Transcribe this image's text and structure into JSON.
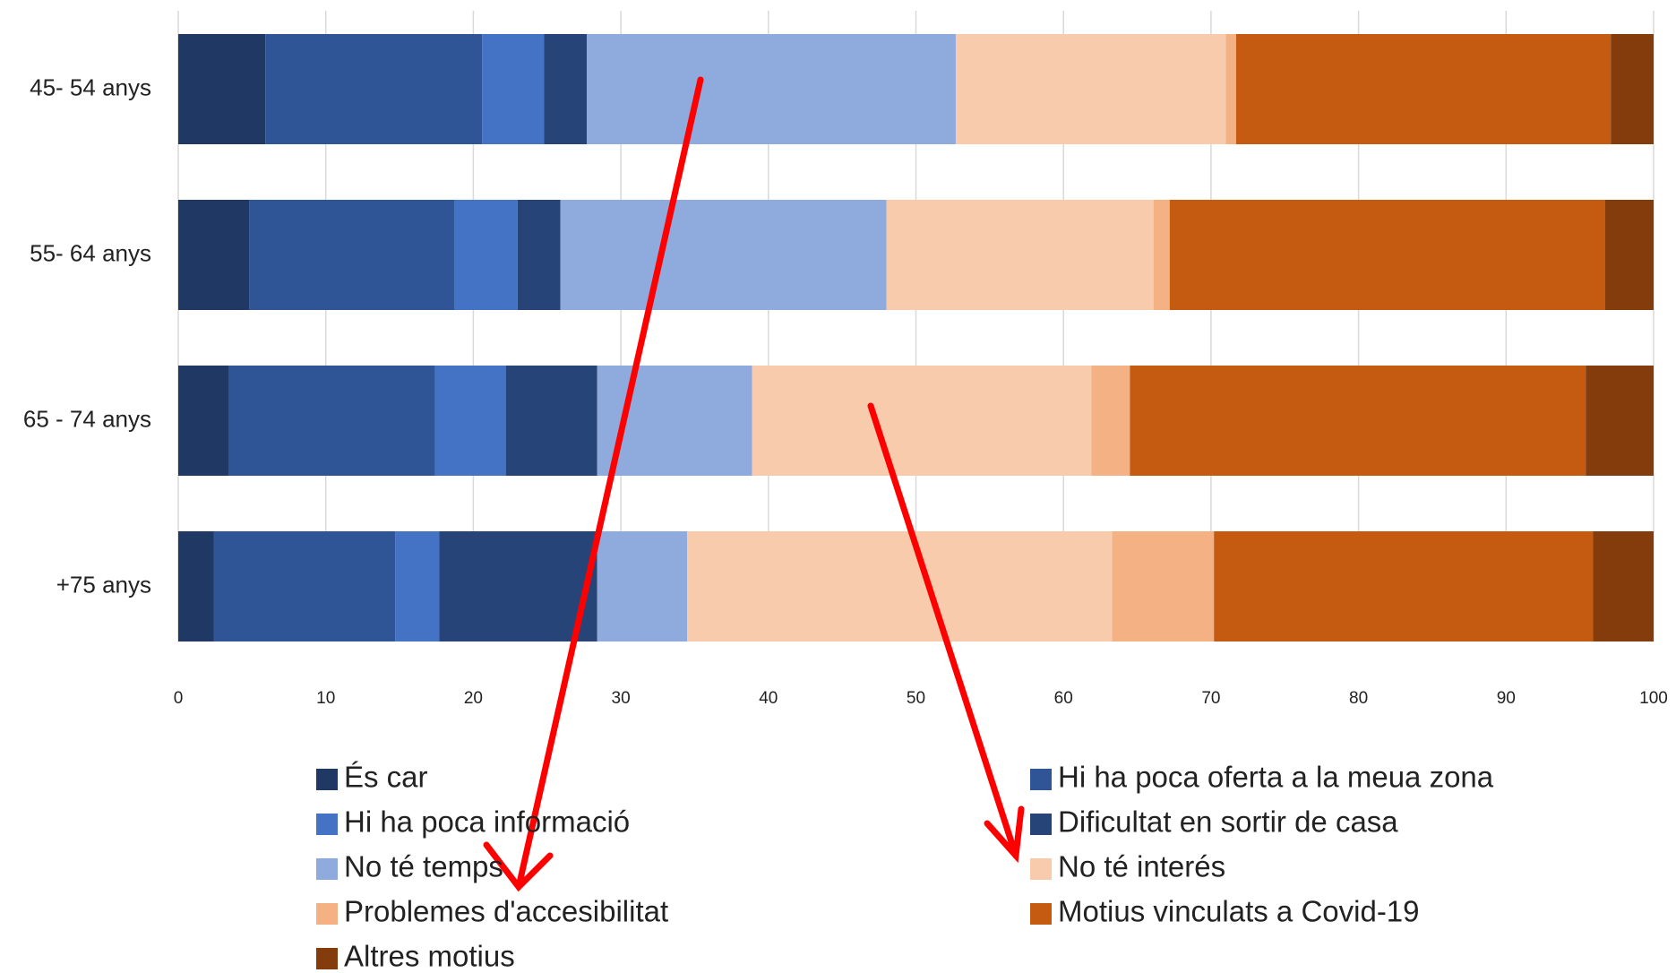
{
  "chart_data": {
    "type": "stacked-barh",
    "categories": [
      "45- 54 anys",
      "55- 64 anys",
      "65 - 74 anys",
      "+75 anys"
    ],
    "series": [
      {
        "name": "És car",
        "color": "#203864",
        "values": [
          5.9,
          4.8,
          3.4,
          2.4
        ]
      },
      {
        "name": "Hi ha poca oferta a la meua zona",
        "color": "#2f5597",
        "values": [
          14.7,
          13.9,
          14.0,
          12.3
        ]
      },
      {
        "name": "Hi ha poca informació",
        "color": "#4472c4",
        "values": [
          4.2,
          4.3,
          4.8,
          3.0
        ]
      },
      {
        "name": "Dificultat en sortir de casa",
        "color": "#264478",
        "values": [
          2.9,
          2.9,
          6.2,
          10.7
        ]
      },
      {
        "name": "No té temps",
        "color": "#8faadc",
        "values": [
          25.0,
          22.1,
          10.5,
          6.1
        ]
      },
      {
        "name": "No té interés",
        "color": "#f8cbad",
        "values": [
          18.3,
          18.1,
          23.0,
          28.8
        ]
      },
      {
        "name": "Problemes d'accesibilitat",
        "color": "#f4b183",
        "values": [
          0.7,
          1.1,
          2.6,
          6.9
        ]
      },
      {
        "name": "Motius vinculats a Covid-19",
        "color": "#c55a11",
        "values": [
          25.4,
          29.5,
          30.9,
          25.7
        ]
      },
      {
        "name": "Altres motius",
        "color": "#843c0c",
        "values": [
          2.9,
          3.3,
          4.6,
          4.1
        ]
      }
    ],
    "xlim": [
      0,
      100
    ],
    "xticks": [
      0,
      10,
      20,
      30,
      40,
      50,
      60,
      70,
      80,
      90,
      100
    ],
    "grid": true
  }
}
